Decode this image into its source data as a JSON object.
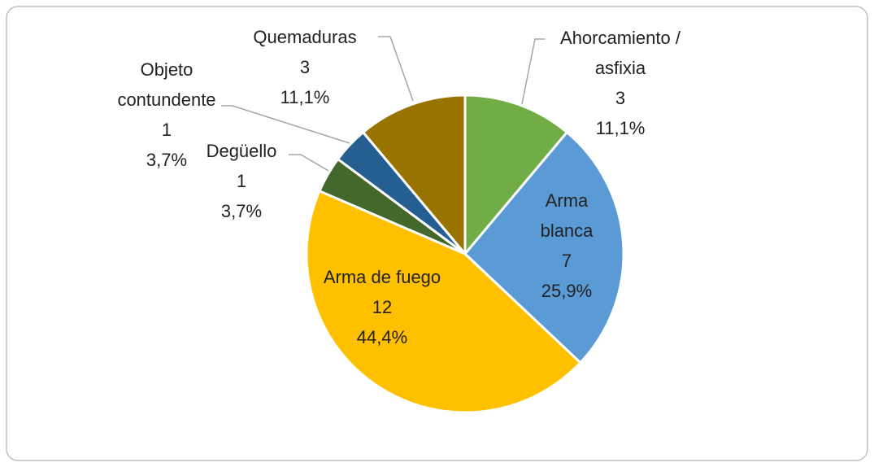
{
  "chart_data": {
    "type": "pie",
    "categories": [
      "Ahorcamiento / asfixia",
      "Arma blanca",
      "Arma de fuego",
      "Degüello",
      "Objeto contundente",
      "Quemaduras"
    ],
    "values": [
      3,
      7,
      12,
      1,
      1,
      3
    ],
    "percent_labels": [
      "11,1%",
      "25,9%",
      "44,4%",
      "3,7%",
      "3,7%",
      "11,1%"
    ],
    "colors": [
      "#70ad47",
      "#5b9bd5",
      "#ffc000",
      "#43682b",
      "#255e91",
      "#997300"
    ]
  }
}
